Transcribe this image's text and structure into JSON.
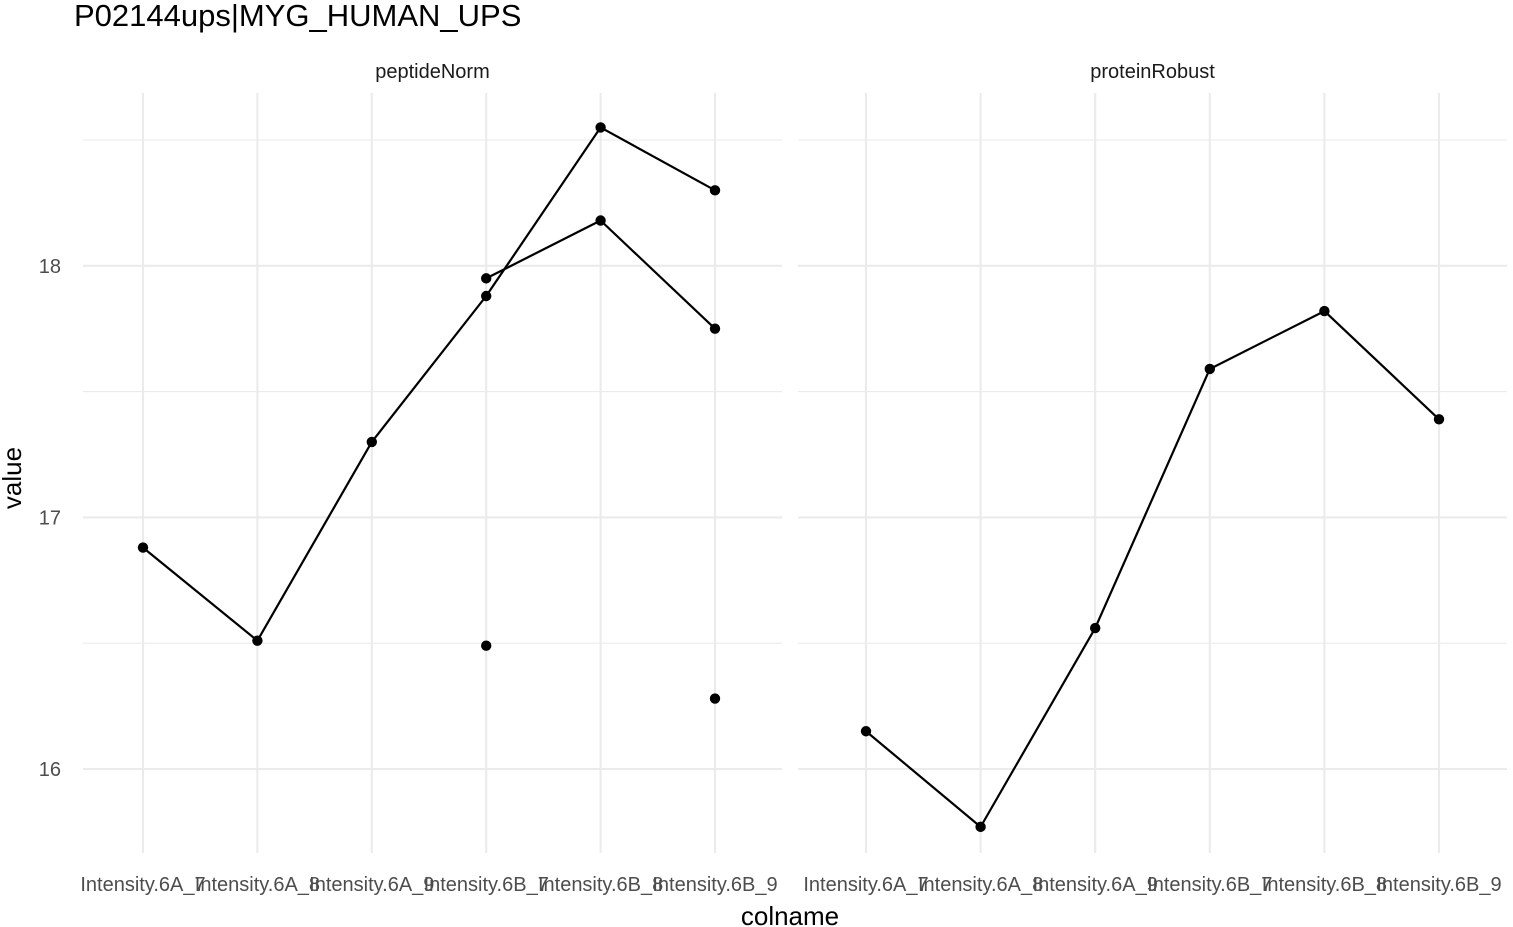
{
  "chart_data": {
    "type": "line",
    "title": "P02144ups|MYG_HUMAN_UPS",
    "xlabel": "colname",
    "ylabel": "value",
    "categories": [
      "Intensity.6A_7",
      "Intensity.6A_8",
      "Intensity.6A_9",
      "Intensity.6B_7",
      "Intensity.6B_8",
      "Intensity.6B_9"
    ],
    "y_ticks": [
      16,
      17,
      18
    ],
    "ylim": [
      15.7,
      18.55
    ],
    "grid": true,
    "legend": "none",
    "facets": [
      {
        "label": "peptideNorm",
        "series": [
          {
            "values": [
              16.88,
              16.51,
              17.3,
              17.88,
              18.55,
              18.3
            ]
          },
          {
            "values": [
              null,
              null,
              null,
              17.95,
              18.18,
              17.75
            ]
          },
          {
            "values": [
              null,
              null,
              null,
              16.49,
              null,
              16.28
            ]
          }
        ]
      },
      {
        "label": "proteinRobust",
        "series": [
          {
            "values": [
              16.15,
              15.77,
              16.56,
              17.59,
              17.82,
              17.39
            ]
          }
        ]
      }
    ]
  }
}
